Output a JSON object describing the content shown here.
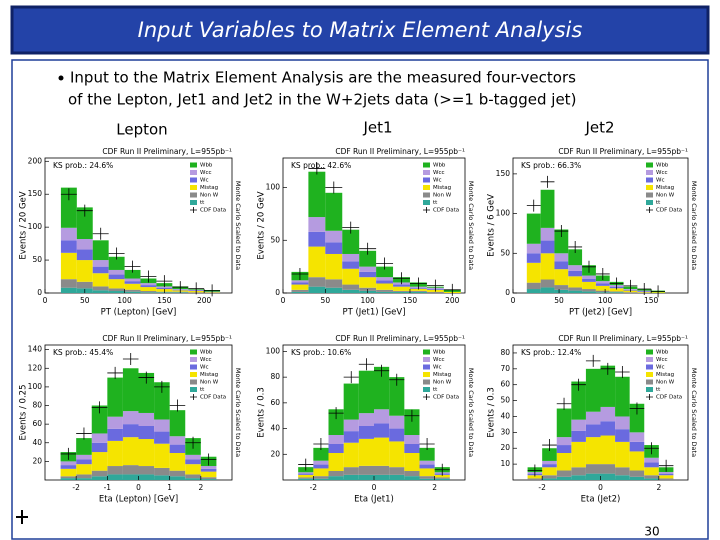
{
  "slide": {
    "title": "Input Variables to Matrix Element Analysis",
    "bullet": [
      "Input to the Matrix Element Analysis are the measured four-vectors",
      "of the Lepton, Jet1 and Jet2 in the W+2jets data (>=1 b-tagged jet)"
    ],
    "columns": [
      "Lepton",
      "Jet1",
      "Jet2"
    ],
    "page_number": "30"
  },
  "chart_data": [
    {
      "type": "histogram",
      "header": "CDF Run II Preliminary, L=955pb⁻¹",
      "ks_label": "KS prob.: 24.6%",
      "xlabel": "PT (Lepton) [GeV]",
      "ylabel": "Events / 20 GeV",
      "side_label": "Monte Carlo Scaled to Data",
      "bins": [
        20,
        40,
        60,
        80,
        100,
        120,
        140,
        160,
        180,
        200,
        220
      ],
      "xlim": [
        0,
        235
      ],
      "xticks": [
        0,
        50,
        100,
        150,
        200
      ],
      "ylim": [
        0,
        205
      ],
      "yticks": [
        0,
        50,
        100,
        150,
        200
      ],
      "series": [
        {
          "name": "tt",
          "color": "#2fa89a",
          "values": [
            8,
            7,
            4,
            3,
            2,
            1,
            1,
            1,
            0,
            0
          ]
        },
        {
          "name": "Non W",
          "color": "#8a8a8a",
          "values": [
            13,
            10,
            6,
            4,
            3,
            2,
            1,
            1,
            1,
            0
          ]
        },
        {
          "name": "Mistag",
          "color": "#f5e400",
          "values": [
            40,
            33,
            20,
            14,
            9,
            6,
            4,
            2,
            2,
            1
          ]
        },
        {
          "name": "Wc",
          "color": "#6a6adf",
          "values": [
            19,
            16,
            10,
            7,
            4,
            3,
            2,
            1,
            1,
            1
          ]
        },
        {
          "name": "Wcc",
          "color": "#b59be0",
          "values": [
            19,
            16,
            10,
            7,
            4,
            3,
            2,
            1,
            1,
            0
          ]
        },
        {
          "name": "Wbb",
          "color": "#1fb21f",
          "values": [
            61,
            48,
            30,
            20,
            13,
            7,
            5,
            4,
            1,
            2
          ]
        },
        {
          "name": "CDF Data",
          "color": "#000000",
          "marker": "cross",
          "values": [
            150,
            125,
            90,
            60,
            40,
            25,
            18,
            9,
            7,
            4
          ]
        }
      ]
    },
    {
      "type": "histogram",
      "header": "CDF Run II Preliminary, L=955pb⁻¹",
      "ks_label": "KS prob.: 42.6%",
      "xlabel": "PT (Jet1) [GeV]",
      "ylabel": "Events / 20 GeV",
      "side_label": "Monte Carlo Scaled to Data",
      "bins": [
        10,
        30,
        50,
        70,
        90,
        110,
        130,
        150,
        170,
        190,
        210
      ],
      "xlim": [
        0,
        215
      ],
      "xticks": [
        0,
        50,
        100,
        150,
        200
      ],
      "ylim": [
        0,
        128
      ],
      "yticks": [
        0,
        50,
        100
      ],
      "series": [
        {
          "name": "tt",
          "color": "#2fa89a",
          "values": [
            1,
            6,
            5,
            3,
            2,
            1,
            1,
            1,
            0,
            0
          ]
        },
        {
          "name": "Non W",
          "color": "#8a8a8a",
          "values": [
            2,
            9,
            8,
            5,
            3,
            2,
            1,
            1,
            1,
            0
          ]
        },
        {
          "name": "Mistag",
          "color": "#f5e400",
          "values": [
            5,
            29,
            24,
            15,
            10,
            6,
            4,
            2,
            2,
            1
          ]
        },
        {
          "name": "Wc",
          "color": "#6a6adf",
          "values": [
            2,
            14,
            11,
            7,
            5,
            3,
            2,
            1,
            1,
            0
          ]
        },
        {
          "name": "Wcc",
          "color": "#b59be0",
          "values": [
            2,
            14,
            11,
            7,
            5,
            3,
            2,
            1,
            1,
            0
          ]
        },
        {
          "name": "Wbb",
          "color": "#1fb21f",
          "values": [
            8,
            43,
            36,
            23,
            15,
            10,
            5,
            4,
            1,
            2
          ]
        },
        {
          "name": "CDF Data",
          "color": "#000000",
          "marker": "cross",
          "values": [
            18,
            118,
            100,
            62,
            42,
            28,
            14,
            9,
            7,
            3
          ]
        }
      ]
    },
    {
      "type": "histogram",
      "header": "CDF Run II Preliminary, L=955pb⁻¹",
      "ks_label": "KS prob.: 66.3%",
      "xlabel": "PT (Jet2) [GeV]",
      "ylabel": "Events / 6 GeV",
      "side_label": "Monte Carlo Scaled to Data",
      "bins": [
        15,
        30,
        45,
        60,
        75,
        90,
        105,
        120,
        135,
        150,
        165
      ],
      "xlim": [
        0,
        190
      ],
      "xticks": [
        0,
        50,
        100,
        150
      ],
      "ylim": [
        0,
        170
      ],
      "yticks": [
        0,
        50,
        100,
        150
      ],
      "series": [
        {
          "name": "tt",
          "color": "#2fa89a",
          "values": [
            5,
            7,
            4,
            3,
            2,
            1,
            1,
            0,
            0,
            0
          ]
        },
        {
          "name": "Non W",
          "color": "#8a8a8a",
          "values": [
            8,
            10,
            6,
            4,
            3,
            2,
            1,
            1,
            0,
            0
          ]
        },
        {
          "name": "Mistag",
          "color": "#f5e400",
          "values": [
            25,
            33,
            20,
            14,
            9,
            6,
            4,
            2,
            1,
            1
          ]
        },
        {
          "name": "Wc",
          "color": "#6a6adf",
          "values": [
            12,
            16,
            10,
            7,
            4,
            3,
            2,
            1,
            1,
            0
          ]
        },
        {
          "name": "Wcc",
          "color": "#b59be0",
          "values": [
            12,
            16,
            10,
            7,
            4,
            3,
            2,
            1,
            1,
            0
          ]
        },
        {
          "name": "Wbb",
          "color": "#1fb21f",
          "values": [
            38,
            48,
            30,
            20,
            13,
            7,
            4,
            3,
            2,
            2
          ]
        },
        {
          "name": "CDF Data",
          "color": "#000000",
          "marker": "cross",
          "values": [
            110,
            140,
            78,
            58,
            33,
            24,
            12,
            9,
            5,
            2
          ]
        }
      ]
    },
    {
      "type": "histogram",
      "header": "CDF Run II Preliminary, L=955pb⁻¹",
      "ks_label": "KS prob.: 45.4%",
      "xlabel": "Eta (Lepton) [GeV]",
      "ylabel": "Events / 0.25",
      "side_label": "Monte Carlo Scaled to Data",
      "bins": [
        -2.5,
        -2,
        -1.5,
        -1,
        -0.5,
        0,
        0.5,
        1,
        1.5,
        2,
        2.5
      ],
      "xlim": [
        -3,
        3
      ],
      "xticks": [
        -2,
        -1,
        0,
        1,
        2
      ],
      "ylim": [
        0,
        145
      ],
      "yticks": [
        20,
        40,
        60,
        80,
        100,
        120,
        140
      ],
      "series": [
        {
          "name": "tt",
          "color": "#2fa89a",
          "values": [
            2,
            2,
            4,
            6,
            6,
            6,
            5,
            4,
            2,
            1
          ]
        },
        {
          "name": "Non W",
          "color": "#8a8a8a",
          "values": [
            2,
            4,
            6,
            9,
            10,
            9,
            8,
            6,
            4,
            2
          ]
        },
        {
          "name": "Mistag",
          "color": "#f5e400",
          "values": [
            8,
            11,
            20,
            27,
            30,
            29,
            26,
            19,
            11,
            6
          ]
        },
        {
          "name": "Wc",
          "color": "#6a6adf",
          "values": [
            4,
            5,
            10,
            13,
            14,
            14,
            13,
            9,
            5,
            3
          ]
        },
        {
          "name": "Wcc",
          "color": "#b59be0",
          "values": [
            4,
            5,
            10,
            13,
            14,
            14,
            13,
            9,
            5,
            3
          ]
        },
        {
          "name": "Wbb",
          "color": "#1fb21f",
          "values": [
            10,
            18,
            30,
            42,
            46,
            43,
            40,
            28,
            18,
            10
          ]
        },
        {
          "name": "CDF Data",
          "color": "#000000",
          "marker": "cross",
          "values": [
            28,
            50,
            78,
            115,
            130,
            110,
            100,
            80,
            40,
            22
          ]
        }
      ]
    },
    {
      "type": "histogram",
      "header": "CDF Run II Preliminary, L=955pb⁻¹",
      "ks_label": "KS prob.: 10.6%",
      "xlabel": "Eta (Jet1)",
      "ylabel": "Events / 0.3",
      "side_label": "Monte Carlo Scaled to Data",
      "bins": [
        -2.5,
        -2,
        -1.5,
        -1,
        -0.5,
        0,
        0.5,
        1,
        1.5,
        2,
        2.5
      ],
      "xlim": [
        -3,
        3
      ],
      "xticks": [
        -2,
        0,
        2
      ],
      "ylim": [
        0,
        105
      ],
      "yticks": [
        20,
        40,
        60,
        80,
        100
      ],
      "series": [
        {
          "name": "tt",
          "color": "#2fa89a",
          "values": [
            1,
            1,
            3,
            4,
            4,
            4,
            4,
            3,
            1,
            1
          ]
        },
        {
          "name": "Non W",
          "color": "#8a8a8a",
          "values": [
            1,
            2,
            4,
            6,
            7,
            7,
            6,
            4,
            2,
            1
          ]
        },
        {
          "name": "Mistag",
          "color": "#f5e400",
          "values": [
            2,
            6,
            14,
            19,
            21,
            22,
            20,
            14,
            6,
            2
          ]
        },
        {
          "name": "Wc",
          "color": "#6a6adf",
          "values": [
            1,
            3,
            7,
            9,
            10,
            11,
            10,
            7,
            3,
            1
          ]
        },
        {
          "name": "Wcc",
          "color": "#b59be0",
          "values": [
            1,
            3,
            7,
            9,
            10,
            11,
            10,
            7,
            3,
            1
          ]
        },
        {
          "name": "Wbb",
          "color": "#1fb21f",
          "values": [
            4,
            10,
            20,
            28,
            33,
            33,
            30,
            20,
            10,
            4
          ]
        },
        {
          "name": "CDF Data",
          "color": "#000000",
          "marker": "cross",
          "values": [
            12,
            28,
            52,
            80,
            90,
            85,
            78,
            50,
            28,
            8
          ]
        }
      ]
    },
    {
      "type": "histogram",
      "header": "CDF Run II Preliminary, L=955pb⁻¹",
      "ks_label": "KS prob.: 12.4%",
      "xlabel": "Eta (Jet2)",
      "ylabel": "Events / 0.3",
      "side_label": "Monte Carlo Scaled to Data",
      "bins": [
        -2.5,
        -2,
        -1.5,
        -1,
        -0.5,
        0,
        0.5,
        1,
        1.5,
        2,
        2.5
      ],
      "xlim": [
        -3,
        3
      ],
      "xticks": [
        -2,
        0,
        2
      ],
      "ylim": [
        0,
        85
      ],
      "yticks": [
        10,
        20,
        30,
        40,
        50,
        60,
        70,
        80
      ],
      "series": [
        {
          "name": "tt",
          "color": "#2fa89a",
          "values": [
            0,
            1,
            2,
            3,
            4,
            4,
            3,
            2,
            1,
            0
          ]
        },
        {
          "name": "Non W",
          "color": "#8a8a8a",
          "values": [
            1,
            2,
            4,
            5,
            6,
            6,
            5,
            4,
            2,
            1
          ]
        },
        {
          "name": "Mistag",
          "color": "#f5e400",
          "values": [
            2,
            5,
            11,
            16,
            17,
            18,
            16,
            12,
            5,
            2
          ]
        },
        {
          "name": "Wc",
          "color": "#6a6adf",
          "values": [
            1,
            2,
            5,
            7,
            8,
            9,
            8,
            6,
            3,
            1
          ]
        },
        {
          "name": "Wcc",
          "color": "#b59be0",
          "values": [
            1,
            2,
            5,
            7,
            8,
            9,
            8,
            6,
            3,
            1
          ]
        },
        {
          "name": "Wbb",
          "color": "#1fb21f",
          "values": [
            3,
            8,
            18,
            24,
            27,
            26,
            25,
            18,
            8,
            3
          ]
        },
        {
          "name": "CDF Data",
          "color": "#000000",
          "marker": "cross",
          "values": [
            6,
            22,
            48,
            60,
            75,
            70,
            68,
            45,
            20,
            9
          ]
        }
      ]
    }
  ]
}
